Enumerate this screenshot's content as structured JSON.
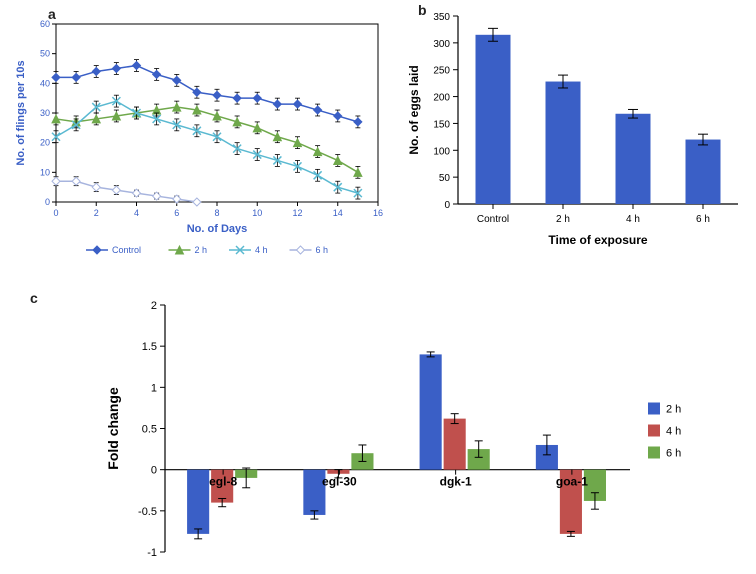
{
  "panelA": {
    "label": "a",
    "type": "line",
    "x_label": "No. of Days",
    "y_label": "No. of flings per 10s",
    "xlim": [
      0,
      16
    ],
    "x_ticks": [
      0,
      2,
      4,
      6,
      8,
      10,
      12,
      14,
      16
    ],
    "ylim": [
      0,
      60
    ],
    "y_ticks": [
      0,
      10,
      20,
      30,
      40,
      50,
      60
    ],
    "axis_color": "#000000",
    "label_fontsize": 11,
    "label_color": "#3a5fc6",
    "tick_fontsize": 9,
    "tick_color": "#3a5fc6",
    "marker_size": 4,
    "series": [
      {
        "name": "Control",
        "color": "#3a5fc6",
        "marker": "diamond",
        "x": [
          0,
          1,
          2,
          3,
          4,
          5,
          6,
          7,
          8,
          9,
          10,
          11,
          12,
          13,
          14,
          15
        ],
        "y": [
          42,
          42,
          44,
          45,
          46,
          43,
          41,
          37,
          36,
          35,
          35,
          33,
          33,
          31,
          29,
          27
        ],
        "err": [
          2,
          2,
          2,
          2,
          2,
          2,
          2,
          2,
          2,
          2,
          2,
          2,
          2,
          2,
          2,
          2
        ]
      },
      {
        "name": "2 h",
        "color": "#6fa84b",
        "marker": "triangle",
        "x": [
          0,
          1,
          2,
          3,
          4,
          5,
          6,
          7,
          8,
          9,
          10,
          11,
          12,
          13,
          14,
          15
        ],
        "y": [
          28,
          27,
          28,
          29,
          30,
          31,
          32,
          31,
          29,
          27,
          25,
          22,
          20,
          17,
          14,
          10
        ],
        "err": [
          2,
          2,
          2,
          2,
          2,
          2,
          2,
          2,
          2,
          2,
          2,
          2,
          2,
          2,
          2,
          2
        ]
      },
      {
        "name": "4 h",
        "color": "#5ab9d1",
        "marker": "x",
        "x": [
          0,
          1,
          2,
          3,
          4,
          5,
          6,
          7,
          8,
          9,
          10,
          11,
          12,
          13,
          14,
          15
        ],
        "y": [
          22,
          26,
          32,
          34,
          30,
          28,
          26,
          24,
          22,
          18,
          16,
          14,
          12,
          9,
          5,
          3
        ],
        "err": [
          2,
          2,
          2,
          2,
          2,
          2,
          2,
          2,
          2,
          2,
          2,
          2,
          2,
          2,
          2,
          2
        ]
      },
      {
        "name": "6 h",
        "color": "#a7b4de",
        "marker": "diamond-open",
        "x": [
          0,
          1,
          2,
          3,
          4,
          5,
          6,
          7
        ],
        "y": [
          7,
          7,
          5,
          4,
          3,
          2,
          1,
          0
        ],
        "err": [
          1.5,
          1.5,
          1.5,
          1.5,
          1,
          1,
          1,
          0.5
        ]
      }
    ],
    "legend": {
      "fontsize": 9,
      "color": "#3a5fc6"
    }
  },
  "panelB": {
    "label": "b",
    "type": "bar",
    "x_label": "Time of exposure",
    "y_label": "No. of eggs laid",
    "ylim": [
      0,
      350
    ],
    "y_ticks": [
      0,
      50,
      100,
      150,
      200,
      250,
      300,
      350
    ],
    "bar_color": "#3a5fc6",
    "axis_color": "#000000",
    "label_fontsize": 12,
    "label_weight": "bold",
    "label_color": "#000",
    "tick_fontsize": 10,
    "tick_color": "#000",
    "bar_width": 0.5,
    "categories": [
      "Control",
      "2 h",
      "4 h",
      "6 h"
    ],
    "values": [
      315,
      228,
      168,
      120
    ],
    "err": [
      12,
      12,
      8,
      10
    ]
  },
  "panelC": {
    "label": "c",
    "type": "grouped-bar",
    "y_label": "Fold change",
    "ylim": [
      -1,
      2
    ],
    "y_ticks": [
      -1,
      -0.5,
      0,
      0.5,
      1,
      1.5,
      2
    ],
    "axis_color": "#000000",
    "label_fontsize": 14,
    "label_weight": "bold",
    "label_color": "#000",
    "tick_fontsize": 11,
    "tick_color": "#000",
    "categories": [
      "egl-8",
      "egl-30",
      "dgk-1",
      "goa-1"
    ],
    "cat_fontsize": 12,
    "cat_weight": "bold",
    "bar_width": 0.25,
    "series_colors": [
      "#3a5fc6",
      "#c0504d",
      "#6fa84b"
    ],
    "series_names": [
      "2 h",
      "4 h",
      "6 h"
    ],
    "legend_fontsize": 11,
    "data": {
      "2 h": {
        "values": [
          -0.78,
          -0.55,
          1.4,
          0.3
        ],
        "err": [
          0.06,
          0.05,
          0.03,
          0.12
        ]
      },
      "4 h": {
        "values": [
          -0.4,
          -0.05,
          0.62,
          -0.78
        ],
        "err": [
          0.05,
          0.05,
          0.06,
          0.03
        ]
      },
      "6 h": {
        "values": [
          -0.1,
          0.2,
          0.25,
          -0.38
        ],
        "err": [
          0.12,
          0.1,
          0.1,
          0.1
        ]
      }
    }
  }
}
